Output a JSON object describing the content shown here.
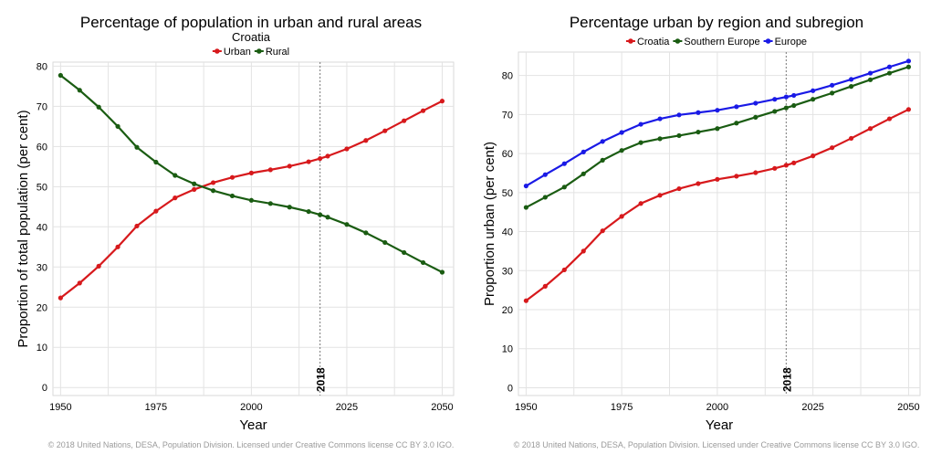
{
  "chart_data": [
    {
      "type": "line",
      "title": "Percentage of population in urban and rural areas",
      "subtitle": "Croatia",
      "xlabel": "Year",
      "ylabel": "Proportion of total population (per cent)",
      "xlim": [
        1948,
        2053
      ],
      "ylim": [
        -2,
        81
      ],
      "xticks": [
        1950,
        1975,
        2000,
        2025,
        2050
      ],
      "yticks": [
        0,
        10,
        20,
        30,
        40,
        50,
        60,
        70,
        80
      ],
      "grid": true,
      "legend": "top-center",
      "marker_year": 2018,
      "marker_label": "2018",
      "x": [
        1950,
        1955,
        1960,
        1965,
        1970,
        1975,
        1980,
        1985,
        1990,
        1995,
        2000,
        2005,
        2010,
        2015,
        2018,
        2020,
        2025,
        2030,
        2035,
        2040,
        2045,
        2050
      ],
      "series": [
        {
          "name": "Urban",
          "color": "#d7191c",
          "values": [
            22.3,
            26.0,
            30.2,
            35.0,
            40.2,
            43.9,
            47.2,
            49.3,
            51.0,
            52.3,
            53.4,
            54.2,
            55.1,
            56.2,
            57.0,
            57.6,
            59.4,
            61.5,
            63.9,
            66.4,
            68.9,
            71.3
          ]
        },
        {
          "name": "Rural",
          "color": "#1a5c12",
          "values": [
            77.7,
            74.0,
            69.8,
            65.0,
            59.8,
            56.1,
            52.8,
            50.7,
            49.0,
            47.7,
            46.6,
            45.8,
            44.9,
            43.8,
            43.0,
            42.4,
            40.6,
            38.5,
            36.1,
            33.6,
            31.1,
            28.7
          ]
        }
      ],
      "footer": "© 2018 United Nations, DESA, Population Division. Licensed under Creative Commons license CC BY 3.0 IGO."
    },
    {
      "type": "line",
      "title": "Percentage urban by region and subregion",
      "xlabel": "Year",
      "ylabel": "Proportion urban (per cent)",
      "xlim": [
        1948,
        2053
      ],
      "ylim": [
        -2,
        86
      ],
      "xticks": [
        1950,
        1975,
        2000,
        2025,
        2050
      ],
      "yticks": [
        0,
        10,
        20,
        30,
        40,
        50,
        60,
        70,
        80
      ],
      "grid": true,
      "legend": "top-center",
      "marker_year": 2018,
      "marker_label": "2018",
      "x": [
        1950,
        1955,
        1960,
        1965,
        1970,
        1975,
        1980,
        1985,
        1990,
        1995,
        2000,
        2005,
        2010,
        2015,
        2018,
        2020,
        2025,
        2030,
        2035,
        2040,
        2045,
        2050
      ],
      "series": [
        {
          "name": "Croatia",
          "color": "#d7191c",
          "values": [
            22.3,
            26.0,
            30.2,
            35.0,
            40.2,
            43.9,
            47.2,
            49.3,
            51.0,
            52.3,
            53.4,
            54.2,
            55.1,
            56.2,
            57.0,
            57.6,
            59.4,
            61.5,
            63.9,
            66.4,
            68.9,
            71.3
          ]
        },
        {
          "name": "Southern Europe",
          "color": "#1a5c12",
          "values": [
            46.2,
            48.8,
            51.4,
            54.8,
            58.3,
            60.8,
            62.8,
            63.8,
            64.6,
            65.5,
            66.4,
            67.8,
            69.3,
            70.8,
            71.7,
            72.3,
            73.9,
            75.5,
            77.2,
            78.9,
            80.6,
            82.2
          ]
        },
        {
          "name": "Europe",
          "color": "#1a1ae6",
          "values": [
            51.7,
            54.6,
            57.4,
            60.4,
            63.1,
            65.4,
            67.5,
            68.9,
            69.9,
            70.5,
            71.1,
            72.0,
            72.9,
            73.9,
            74.5,
            74.9,
            76.1,
            77.5,
            79.0,
            80.6,
            82.2,
            83.7
          ]
        }
      ],
      "footer": "© 2018 United Nations, DESA, Population Division. Licensed under Creative Commons license CC BY 3.0 IGO."
    }
  ]
}
